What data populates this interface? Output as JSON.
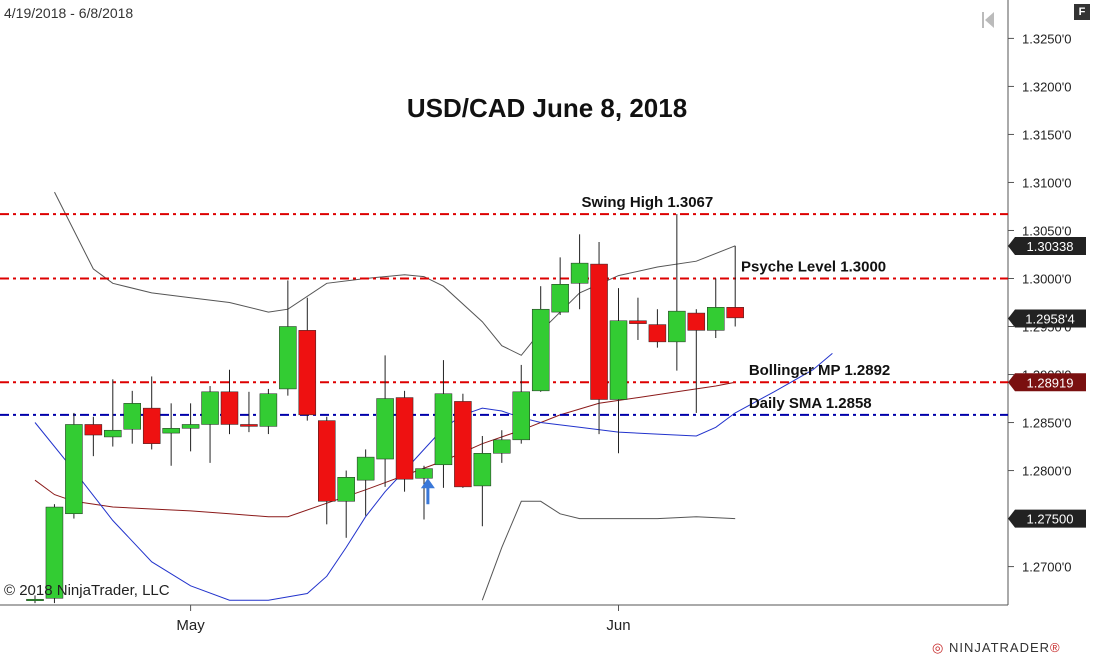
{
  "header": {
    "date_range": "4/19/2018 - 6/8/2018",
    "f_label": "F"
  },
  "footer": {
    "copyright": "© 2018 NinjaTrader, LLC",
    "brand": "NINJATRADER",
    "brand_mark": "®"
  },
  "colors": {
    "up": "#33cc33",
    "down": "#ee1111",
    "resistance": "#dd0000",
    "sma": "#0000aa",
    "bb_band": "#555555",
    "bb_mid": "#8b1a1a",
    "sma_line": "#2233cc"
  },
  "chart_data": {
    "type": "candlestick",
    "title": "USD/CAD June 8, 2018",
    "ylim": [
      1.266,
      1.329
    ],
    "y_ticks": [
      {
        "value": 1.27,
        "label": "1.2700'0"
      },
      {
        "value": 1.275,
        "label": "1.2750'0"
      },
      {
        "value": 1.28,
        "label": "1.2800'0"
      },
      {
        "value": 1.285,
        "label": "1.2850'0"
      },
      {
        "value": 1.29,
        "label": "1.2900'0"
      },
      {
        "value": 1.295,
        "label": "1.2950'0"
      },
      {
        "value": 1.3,
        "label": "1.3000'0"
      },
      {
        "value": 1.305,
        "label": "1.3050'0"
      },
      {
        "value": 1.31,
        "label": "1.3100'0"
      },
      {
        "value": 1.315,
        "label": "1.3150'0"
      },
      {
        "value": 1.32,
        "label": "1.3200'0"
      },
      {
        "value": 1.325,
        "label": "1.3250'0"
      }
    ],
    "x_labels": [
      {
        "index": 8,
        "label": "May"
      },
      {
        "index": 30,
        "label": "Jun"
      }
    ],
    "candles": [
      {
        "o": 1.2665,
        "h": 1.267,
        "l": 1.2662,
        "c": 1.2666
      },
      {
        "o": 1.2667,
        "h": 1.2765,
        "l": 1.2662,
        "c": 1.2762
      },
      {
        "o": 1.2755,
        "h": 1.286,
        "l": 1.275,
        "c": 1.2848
      },
      {
        "o": 1.2848,
        "h": 1.2856,
        "l": 1.2815,
        "c": 1.2837
      },
      {
        "o": 1.2835,
        "h": 1.2895,
        "l": 1.2825,
        "c": 1.2842
      },
      {
        "o": 1.2843,
        "h": 1.2883,
        "l": 1.2828,
        "c": 1.287
      },
      {
        "o": 1.2865,
        "h": 1.2898,
        "l": 1.2822,
        "c": 1.2828
      },
      {
        "o": 1.2839,
        "h": 1.287,
        "l": 1.2805,
        "c": 1.2844
      },
      {
        "o": 1.2844,
        "h": 1.287,
        "l": 1.282,
        "c": 1.2848
      },
      {
        "o": 1.2848,
        "h": 1.2888,
        "l": 1.2808,
        "c": 1.2882
      },
      {
        "o": 1.2882,
        "h": 1.2905,
        "l": 1.2838,
        "c": 1.2848
      },
      {
        "o": 1.2848,
        "h": 1.2882,
        "l": 1.284,
        "c": 1.2846
      },
      {
        "o": 1.2846,
        "h": 1.2885,
        "l": 1.2838,
        "c": 1.288
      },
      {
        "o": 1.2885,
        "h": 1.2998,
        "l": 1.2878,
        "c": 1.295
      },
      {
        "o": 1.2946,
        "h": 1.298,
        "l": 1.2852,
        "c": 1.2858
      },
      {
        "o": 1.2852,
        "h": 1.2856,
        "l": 1.2744,
        "c": 1.2768
      },
      {
        "o": 1.2768,
        "h": 1.28,
        "l": 1.273,
        "c": 1.2793
      },
      {
        "o": 1.279,
        "h": 1.2822,
        "l": 1.2753,
        "c": 1.2814
      },
      {
        "o": 1.2812,
        "h": 1.292,
        "l": 1.2783,
        "c": 1.2875
      },
      {
        "o": 1.2876,
        "h": 1.2883,
        "l": 1.2778,
        "c": 1.2791
      },
      {
        "o": 1.2792,
        "h": 1.2805,
        "l": 1.2749,
        "c": 1.2802
      },
      {
        "o": 1.2806,
        "h": 1.2915,
        "l": 1.2782,
        "c": 1.288
      },
      {
        "o": 1.2872,
        "h": 1.288,
        "l": 1.2782,
        "c": 1.2783
      },
      {
        "o": 1.2784,
        "h": 1.2836,
        "l": 1.2742,
        "c": 1.2818
      },
      {
        "o": 1.2818,
        "h": 1.2842,
        "l": 1.2808,
        "c": 1.2832
      },
      {
        "o": 1.2832,
        "h": 1.291,
        "l": 1.2828,
        "c": 1.2882
      },
      {
        "o": 1.2883,
        "h": 1.2992,
        "l": 1.2882,
        "c": 1.2968
      },
      {
        "o": 1.2965,
        "h": 1.3022,
        "l": 1.2962,
        "c": 1.2994
      },
      {
        "o": 1.2995,
        "h": 1.3046,
        "l": 1.2968,
        "c": 1.3016
      },
      {
        "o": 1.3015,
        "h": 1.3038,
        "l": 1.2838,
        "c": 1.2874
      },
      {
        "o": 1.2874,
        "h": 1.299,
        "l": 1.2818,
        "c": 1.2956
      },
      {
        "o": 1.2956,
        "h": 1.298,
        "l": 1.2936,
        "c": 1.2953
      },
      {
        "o": 1.2952,
        "h": 1.2968,
        "l": 1.2928,
        "c": 1.2934
      },
      {
        "o": 1.2934,
        "h": 1.3067,
        "l": 1.2904,
        "c": 1.2966
      },
      {
        "o": 1.2964,
        "h": 1.2968,
        "l": 1.286,
        "c": 1.2946
      },
      {
        "o": 1.2946,
        "h": 1.3,
        "l": 1.2938,
        "c": 1.297
      },
      {
        "o": 1.297,
        "h": 1.3034,
        "l": 1.295,
        "c": 1.2959
      }
    ],
    "bollinger_upper": [
      [
        1,
        1.309
      ],
      [
        2,
        1.305
      ],
      [
        3,
        1.301
      ],
      [
        4,
        1.2995
      ],
      [
        6,
        1.2985
      ],
      [
        8,
        1.298
      ],
      [
        10,
        1.2975
      ],
      [
        12,
        1.2965
      ],
      [
        13,
        1.2968
      ],
      [
        15,
        1.2995
      ],
      [
        17,
        1.3
      ],
      [
        19,
        1.3004
      ],
      [
        20,
        1.3002
      ],
      [
        21,
        1.2992
      ],
      [
        23,
        1.2955
      ],
      [
        24,
        1.293
      ],
      [
        25,
        1.292
      ],
      [
        26,
        1.2945
      ],
      [
        28,
        1.2985
      ],
      [
        30,
        1.3003
      ],
      [
        32,
        1.3012
      ],
      [
        34,
        1.3018
      ],
      [
        36,
        1.3034
      ]
    ],
    "bollinger_mid": [
      [
        0,
        1.279
      ],
      [
        1,
        1.2775
      ],
      [
        2,
        1.2768
      ],
      [
        4,
        1.2762
      ],
      [
        6,
        1.276
      ],
      [
        8,
        1.2758
      ],
      [
        10,
        1.2755
      ],
      [
        12,
        1.2752
      ],
      [
        13,
        1.2752
      ],
      [
        15,
        1.2766
      ],
      [
        17,
        1.278
      ],
      [
        19,
        1.2795
      ],
      [
        21,
        1.281
      ],
      [
        23,
        1.2828
      ],
      [
        25,
        1.2842
      ],
      [
        27,
        1.2858
      ],
      [
        29,
        1.287
      ],
      [
        31,
        1.2876
      ],
      [
        33,
        1.2882
      ],
      [
        35,
        1.2888
      ],
      [
        36,
        1.2892
      ]
    ],
    "bollinger_lower": [
      [
        23,
        1.2665
      ],
      [
        24,
        1.272
      ],
      [
        25,
        1.2768
      ],
      [
        26,
        1.2768
      ],
      [
        27,
        1.2755
      ],
      [
        28,
        1.275
      ],
      [
        30,
        1.275
      ],
      [
        32,
        1.275
      ],
      [
        34,
        1.2752
      ],
      [
        36,
        1.275
      ]
    ],
    "daily_sma": [
      [
        0,
        1.285
      ],
      [
        2,
        1.28
      ],
      [
        4,
        1.2748
      ],
      [
        6,
        1.2705
      ],
      [
        8,
        1.268
      ],
      [
        10,
        1.2665
      ],
      [
        12,
        1.2665
      ],
      [
        14,
        1.2672
      ],
      [
        15,
        1.269
      ],
      [
        16,
        1.272
      ],
      [
        17,
        1.2752
      ],
      [
        18,
        1.2778
      ],
      [
        19,
        1.28
      ],
      [
        20,
        1.2822
      ],
      [
        21,
        1.2844
      ],
      [
        22,
        1.2858
      ],
      [
        23,
        1.2865
      ],
      [
        24,
        1.2862
      ],
      [
        25,
        1.2855
      ],
      [
        26,
        1.285
      ],
      [
        28,
        1.2845
      ],
      [
        30,
        1.284
      ],
      [
        32,
        1.2838
      ],
      [
        34,
        1.2836
      ],
      [
        35,
        1.2845
      ],
      [
        36,
        1.286
      ],
      [
        38,
        1.2882
      ],
      [
        40,
        1.2905
      ],
      [
        41,
        1.2922
      ]
    ],
    "levels": [
      {
        "value": 1.3067,
        "label": "Swing High 1.3067",
        "kind": "resistance",
        "label_index": 28.1
      },
      {
        "value": 1.3,
        "label": "Psyche Level 1.3000",
        "kind": "resistance",
        "label_index": 36.3
      },
      {
        "value": 1.2892,
        "label": "Bollinger MP 1.2892",
        "kind": "resistance",
        "label_index": 36.7
      },
      {
        "value": 1.2858,
        "label": "Daily SMA 1.2858",
        "kind": "sma",
        "label_index": 36.7
      }
    ],
    "price_markers": [
      {
        "value": 1.30338,
        "label": "1.30338",
        "style": "dark"
      },
      {
        "value": 1.29584,
        "label": "1.2958'4",
        "style": "dark"
      },
      {
        "value": 1.28919,
        "label": "1.28919",
        "style": "red"
      },
      {
        "value": 1.275,
        "label": "1.27500",
        "style": "dark"
      }
    ],
    "arrow": {
      "index": 20.2,
      "value": 1.2792,
      "icon": "up-arrow-icon"
    }
  }
}
